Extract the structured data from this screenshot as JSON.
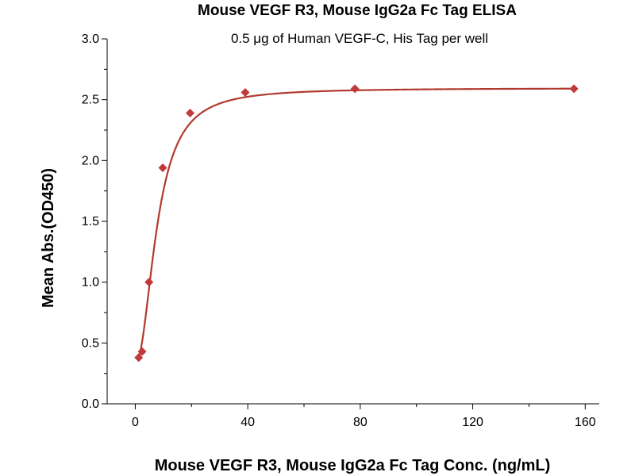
{
  "chart_data": {
    "type": "scatter",
    "title": "Mouse VEGF R3, Mouse IgG2a Fc Tag ELISA",
    "subtitle": "0.5 μg of Human VEGF-C, His Tag per well",
    "xlabel": "Mouse VEGF R3, Mouse IgG2a Fc Tag Conc. (ng/mL)",
    "ylabel": "Mean Abs.(OD450)",
    "xlim": [
      -10,
      165
    ],
    "ylim": [
      0,
      3.0
    ],
    "xticks": [
      "0",
      "40",
      "80",
      "120",
      "160"
    ],
    "yticks": [
      "0.0",
      "0.5",
      "1.0",
      "1.5",
      "2.0",
      "2.5",
      "3.0"
    ],
    "grid": false,
    "legend": "none",
    "series": [
      {
        "x": [
          1.22,
          2.44,
          4.88,
          9.77,
          19.5,
          39.1,
          78.1,
          156.0
        ],
        "y": [
          0.38,
          0.43,
          1.0,
          1.94,
          2.39,
          2.56,
          2.59,
          2.59
        ],
        "marker": "diamond",
        "fit": "4PL"
      }
    ],
    "colors": {
      "marker": "#c0393b",
      "curve": "#b03a2e"
    }
  }
}
